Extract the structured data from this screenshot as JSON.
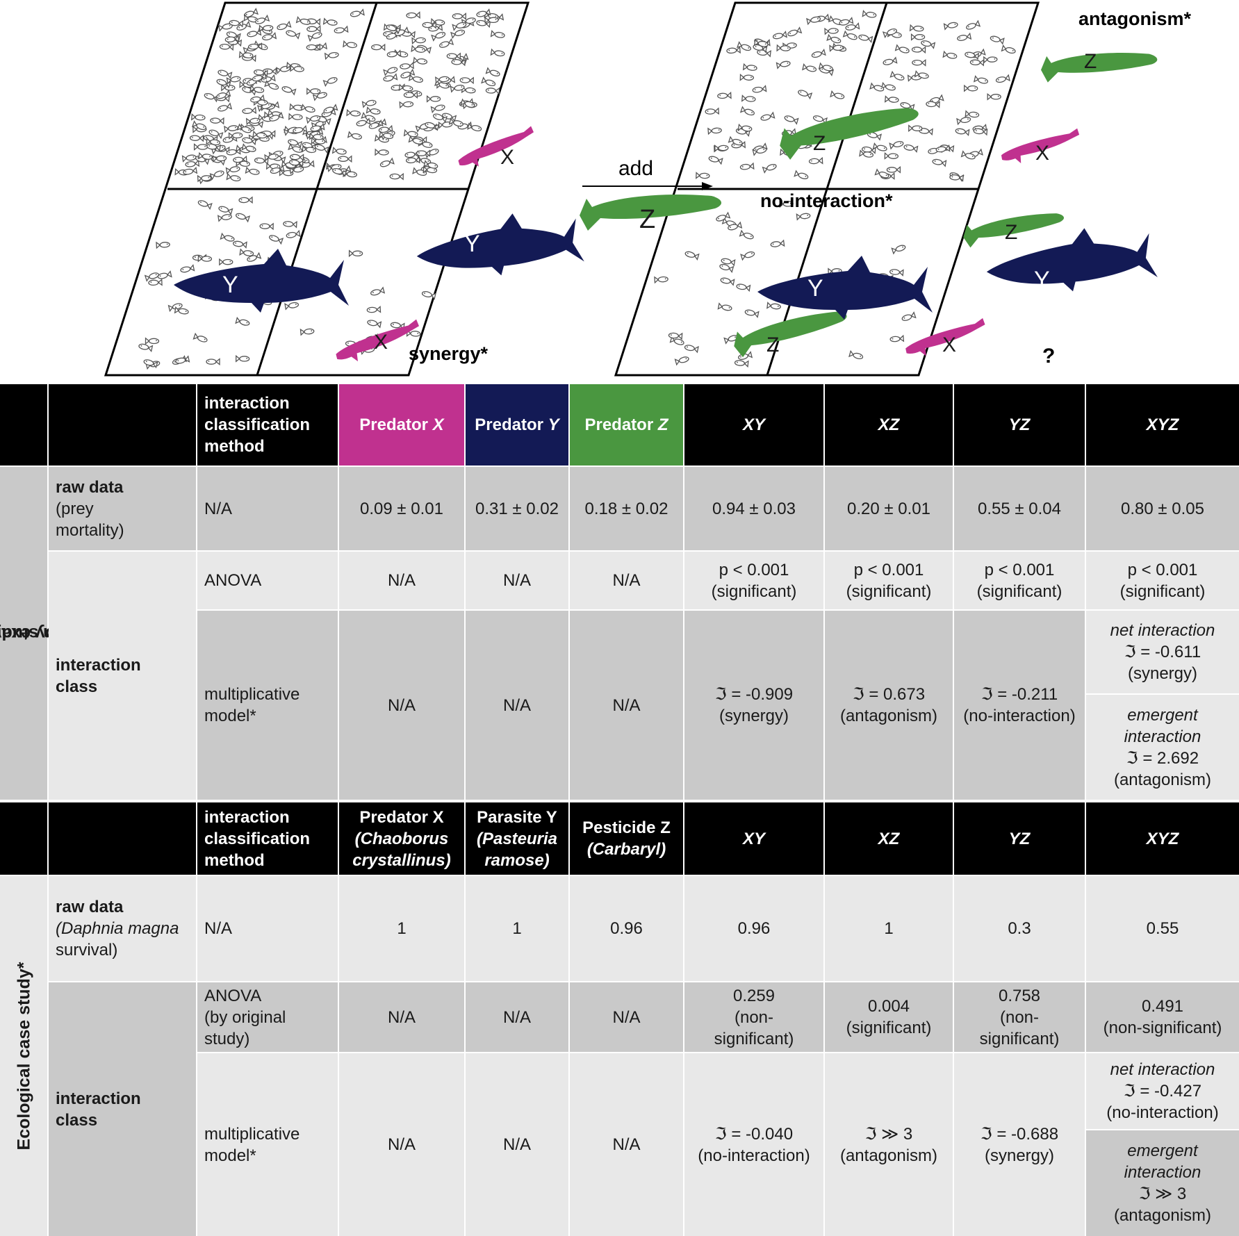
{
  "illustration": {
    "add_label": "add",
    "x_label": "X",
    "y_label": "Y",
    "z_label": "Z",
    "synergy_label": "synergy*",
    "antagonism_label": "antagonism*",
    "nointeraction_label": "no-interaction*",
    "question_label": "?",
    "colors": {
      "predator_x": "#c0318f",
      "predator_y": "#131a55",
      "predator_z": "#4a9740"
    }
  },
  "toy": {
    "side_label_1": "Toy example of",
    "side_label_2": "an interaction study design",
    "header": {
      "method_1": "interaction",
      "method_2": "classification",
      "method_3": "method",
      "px_a": "Predator ",
      "px_b": "X",
      "py_a": "Predator ",
      "py_b": "Y",
      "pz_a": "Predator ",
      "pz_b": "Z",
      "xy": "XY",
      "xz": "XZ",
      "yz": "YZ",
      "xyz": "XYZ"
    },
    "raw": {
      "label_bold": "raw data",
      "label_2": "(prey",
      "label_3": "mortality)",
      "method": "N/A",
      "values": [
        "0.09 ± 0.01",
        "0.31 ± 0.02",
        "0.18 ± 0.02",
        "0.94 ± 0.03",
        "0.20 ± 0.01",
        "0.55 ± 0.04",
        "0.80 ± 0.05"
      ]
    },
    "class_label_1": "interaction",
    "class_label_2": "class",
    "anova": {
      "method": "ANOVA",
      "na": [
        "N/A",
        "N/A",
        "N/A"
      ],
      "values": [
        [
          "p < 0.001",
          "(significant)"
        ],
        [
          "p < 0.001",
          "(significant)"
        ],
        [
          "p < 0.001",
          "(significant)"
        ],
        [
          "p < 0.001",
          "(significant)"
        ]
      ]
    },
    "mult": {
      "method_1": "multiplicative",
      "method_2": "model*",
      "na": [
        "N/A",
        "N/A",
        "N/A"
      ],
      "values": [
        [
          "ℑ = -0.909",
          "(synergy)"
        ],
        [
          "ℑ = 0.673",
          "(antagonism)"
        ],
        [
          "ℑ = -0.211",
          "(no-interaction)"
        ]
      ],
      "net": [
        "net interaction",
        "ℑ = -0.611",
        "(synergy)"
      ],
      "emergent": [
        "emergent",
        "interaction",
        "ℑ = 2.692",
        "(antagonism)"
      ]
    }
  },
  "eco": {
    "side_label": "Ecological case study*",
    "header": {
      "method_1": "interaction",
      "method_2": "classification",
      "method_3": "method",
      "px_1": "Predator X",
      "px_2": "(Chaoborus",
      "px_3": "crystallinus)",
      "py_1": "Parasite Y",
      "py_2": "(Pasteuria",
      "py_3": "ramose)",
      "pz_1": "Pesticide Z",
      "pz_2": "(Carbaryl)",
      "xy": "XY",
      "xz": "XZ",
      "yz": "YZ",
      "xyz": "XYZ"
    },
    "raw": {
      "label_bold": "raw data",
      "label_2": "(Daphnia magna",
      "label_3": "survival)",
      "method": "N/A",
      "values": [
        "1",
        "1",
        "0.96",
        "0.96",
        "1",
        "0.3",
        "0.55"
      ]
    },
    "class_label_1": "interaction",
    "class_label_2": "class",
    "anova": {
      "method_1": "ANOVA",
      "method_2": "(by original",
      "method_3": "study)",
      "na": [
        "N/A",
        "N/A",
        "N/A"
      ],
      "xy": [
        "0.259",
        "(non-",
        "significant)"
      ],
      "xz": [
        "0.004",
        "(significant)"
      ],
      "yz": [
        "0.758",
        "(non-",
        "significant)"
      ],
      "xyz": [
        "0.491",
        "(non-significant)"
      ]
    },
    "mult": {
      "method_1": "multiplicative",
      "method_2": "model*",
      "na": [
        "N/A",
        "N/A",
        "N/A"
      ],
      "values": [
        [
          "ℑ = -0.040",
          "(no-interaction)"
        ],
        [
          "ℑ ≫ 3",
          "(antagonism)"
        ],
        [
          "ℑ = -0.688",
          "(synergy)"
        ]
      ],
      "net": [
        "net interaction",
        "ℑ = -0.427",
        "(no-interaction)"
      ],
      "emergent": [
        "emergent",
        "interaction",
        "ℑ ≫ 3",
        "(antagonism)"
      ]
    }
  }
}
